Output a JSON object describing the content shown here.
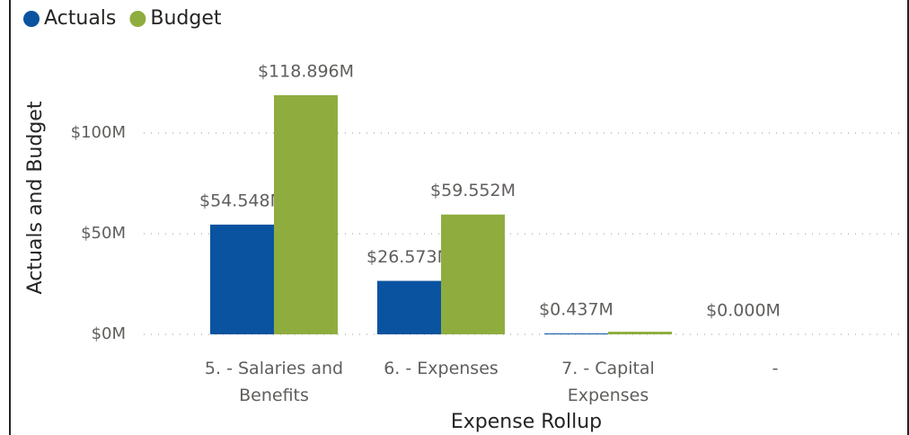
{
  "chart_data": {
    "type": "bar",
    "categories": [
      "5. - Salaries and Benefits",
      "6. - Expenses",
      "7. - Capital Expenses",
      "-"
    ],
    "series": [
      {
        "name": "Actuals",
        "color": "#0a53a0",
        "values": [
          54548000,
          26573000,
          437000,
          0
        ],
        "value_labels": [
          "$54.548M",
          "$26.573M",
          "$0.437M",
          "$0.000M"
        ]
      },
      {
        "name": "Budget",
        "color": "#8fad3f",
        "values": [
          118896000,
          59552000,
          1300000,
          null
        ],
        "value_labels": [
          "$118.896M",
          "$59.552M",
          null,
          null
        ]
      }
    ],
    "x_label": "Expense Rollup",
    "y_label": "Actuals and Budget",
    "ylim": [
      0,
      130000000
    ],
    "yticks": [
      {
        "value": 0,
        "label": "$0M"
      },
      {
        "value": 50000000,
        "label": "$50M"
      },
      {
        "value": 100000000,
        "label": "$100M"
      }
    ],
    "grid": true,
    "legend": "top-left"
  }
}
